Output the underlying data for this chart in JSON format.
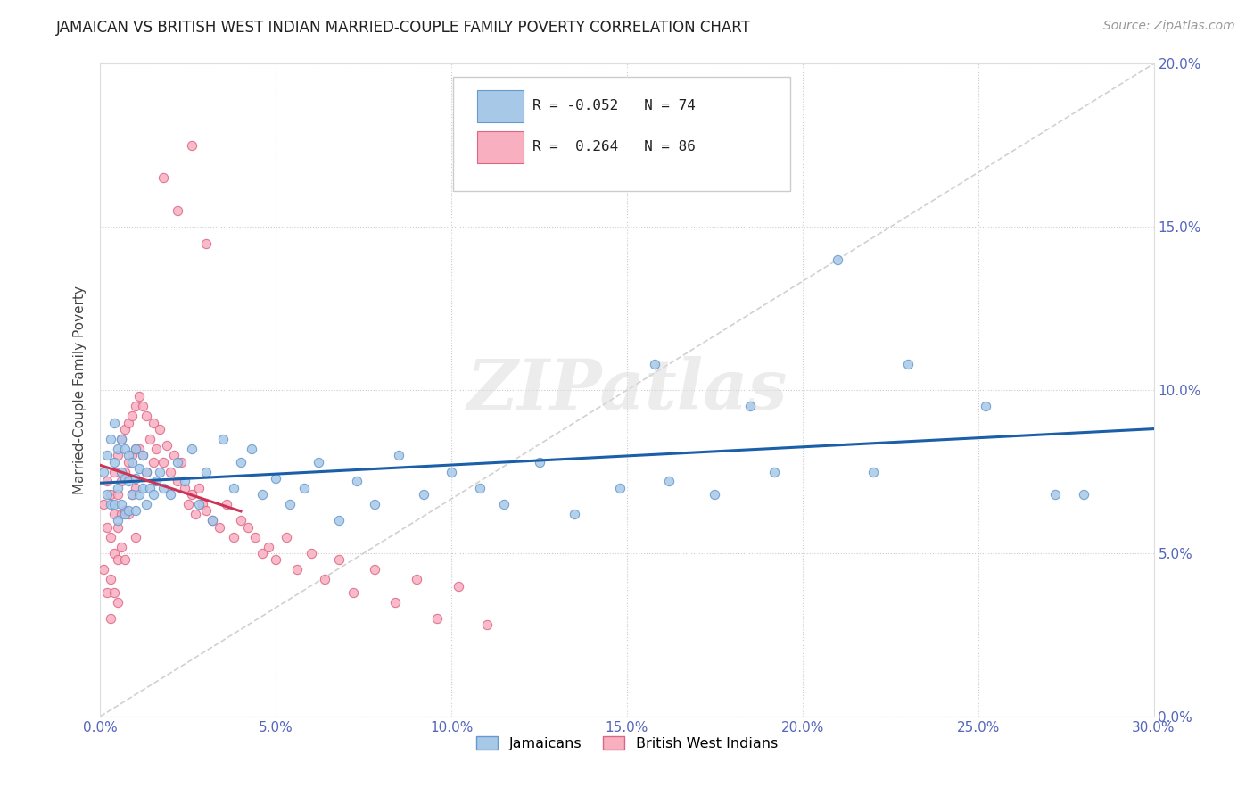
{
  "title": "JAMAICAN VS BRITISH WEST INDIAN MARRIED-COUPLE FAMILY POVERTY CORRELATION CHART",
  "source": "Source: ZipAtlas.com",
  "ylabel": "Married-Couple Family Poverty",
  "xlim": [
    0.0,
    0.3
  ],
  "ylim": [
    0.0,
    0.2
  ],
  "xticks": [
    0.0,
    0.05,
    0.1,
    0.15,
    0.2,
    0.25,
    0.3
  ],
  "yticks": [
    0.0,
    0.05,
    0.1,
    0.15,
    0.2
  ],
  "jamaicans_color": "#a8c8e8",
  "jamaicans_edge": "#6699cc",
  "bwi_color": "#f8b0c0",
  "bwi_edge": "#dd6688",
  "jamaicans_label": "Jamaicans",
  "bwi_label": "British West Indians",
  "diagonal_line_color": "#cccccc",
  "jamaicans_trend_color": "#1a5fa8",
  "bwi_trend_color": "#cc3355",
  "watermark_text": "ZIPatlas",
  "legend_label_j": "R = -0.052   N = 74",
  "legend_label_b": "R =  0.264   N = 86",
  "jamaicans_x": [
    0.001,
    0.002,
    0.002,
    0.003,
    0.003,
    0.004,
    0.004,
    0.004,
    0.005,
    0.005,
    0.005,
    0.006,
    0.006,
    0.006,
    0.007,
    0.007,
    0.007,
    0.008,
    0.008,
    0.008,
    0.009,
    0.009,
    0.01,
    0.01,
    0.01,
    0.011,
    0.011,
    0.012,
    0.012,
    0.013,
    0.013,
    0.014,
    0.015,
    0.016,
    0.017,
    0.018,
    0.02,
    0.022,
    0.024,
    0.026,
    0.028,
    0.03,
    0.032,
    0.035,
    0.038,
    0.04,
    0.043,
    0.046,
    0.05,
    0.054,
    0.058,
    0.062,
    0.068,
    0.073,
    0.078,
    0.085,
    0.092,
    0.1,
    0.108,
    0.115,
    0.125,
    0.135,
    0.148,
    0.162,
    0.175,
    0.192,
    0.21,
    0.23,
    0.252,
    0.272,
    0.158,
    0.185,
    0.22,
    0.28
  ],
  "jamaicans_y": [
    0.075,
    0.08,
    0.068,
    0.085,
    0.065,
    0.09,
    0.078,
    0.065,
    0.082,
    0.07,
    0.06,
    0.085,
    0.075,
    0.065,
    0.082,
    0.073,
    0.062,
    0.08,
    0.072,
    0.063,
    0.078,
    0.068,
    0.082,
    0.073,
    0.063,
    0.076,
    0.068,
    0.08,
    0.07,
    0.075,
    0.065,
    0.07,
    0.068,
    0.072,
    0.075,
    0.07,
    0.068,
    0.078,
    0.072,
    0.082,
    0.065,
    0.075,
    0.06,
    0.085,
    0.07,
    0.078,
    0.082,
    0.068,
    0.073,
    0.065,
    0.07,
    0.078,
    0.06,
    0.072,
    0.065,
    0.08,
    0.068,
    0.075,
    0.07,
    0.065,
    0.078,
    0.062,
    0.07,
    0.072,
    0.068,
    0.075,
    0.14,
    0.108,
    0.095,
    0.068,
    0.108,
    0.095,
    0.075,
    0.068
  ],
  "bwi_x": [
    0.001,
    0.001,
    0.002,
    0.002,
    0.002,
    0.003,
    0.003,
    0.003,
    0.003,
    0.004,
    0.004,
    0.004,
    0.004,
    0.005,
    0.005,
    0.005,
    0.005,
    0.005,
    0.006,
    0.006,
    0.006,
    0.006,
    0.007,
    0.007,
    0.007,
    0.007,
    0.008,
    0.008,
    0.008,
    0.009,
    0.009,
    0.009,
    0.01,
    0.01,
    0.01,
    0.01,
    0.011,
    0.011,
    0.012,
    0.012,
    0.013,
    0.013,
    0.014,
    0.015,
    0.015,
    0.016,
    0.017,
    0.018,
    0.019,
    0.02,
    0.021,
    0.022,
    0.023,
    0.024,
    0.025,
    0.026,
    0.027,
    0.028,
    0.029,
    0.03,
    0.032,
    0.034,
    0.036,
    0.038,
    0.04,
    0.042,
    0.044,
    0.046,
    0.048,
    0.05,
    0.053,
    0.056,
    0.06,
    0.064,
    0.068,
    0.072,
    0.078,
    0.084,
    0.09,
    0.096,
    0.102,
    0.11,
    0.018,
    0.022,
    0.026,
    0.03
  ],
  "bwi_y": [
    0.065,
    0.045,
    0.072,
    0.058,
    0.038,
    0.068,
    0.055,
    0.042,
    0.03,
    0.075,
    0.062,
    0.05,
    0.038,
    0.08,
    0.068,
    0.058,
    0.048,
    0.035,
    0.085,
    0.072,
    0.062,
    0.052,
    0.088,
    0.075,
    0.063,
    0.048,
    0.09,
    0.078,
    0.062,
    0.092,
    0.08,
    0.068,
    0.095,
    0.082,
    0.07,
    0.055,
    0.098,
    0.082,
    0.095,
    0.08,
    0.092,
    0.075,
    0.085,
    0.09,
    0.078,
    0.082,
    0.088,
    0.078,
    0.083,
    0.075,
    0.08,
    0.072,
    0.078,
    0.07,
    0.065,
    0.068,
    0.062,
    0.07,
    0.065,
    0.063,
    0.06,
    0.058,
    0.065,
    0.055,
    0.06,
    0.058,
    0.055,
    0.05,
    0.052,
    0.048,
    0.055,
    0.045,
    0.05,
    0.042,
    0.048,
    0.038,
    0.045,
    0.035,
    0.042,
    0.03,
    0.04,
    0.028,
    0.165,
    0.155,
    0.175,
    0.145
  ]
}
